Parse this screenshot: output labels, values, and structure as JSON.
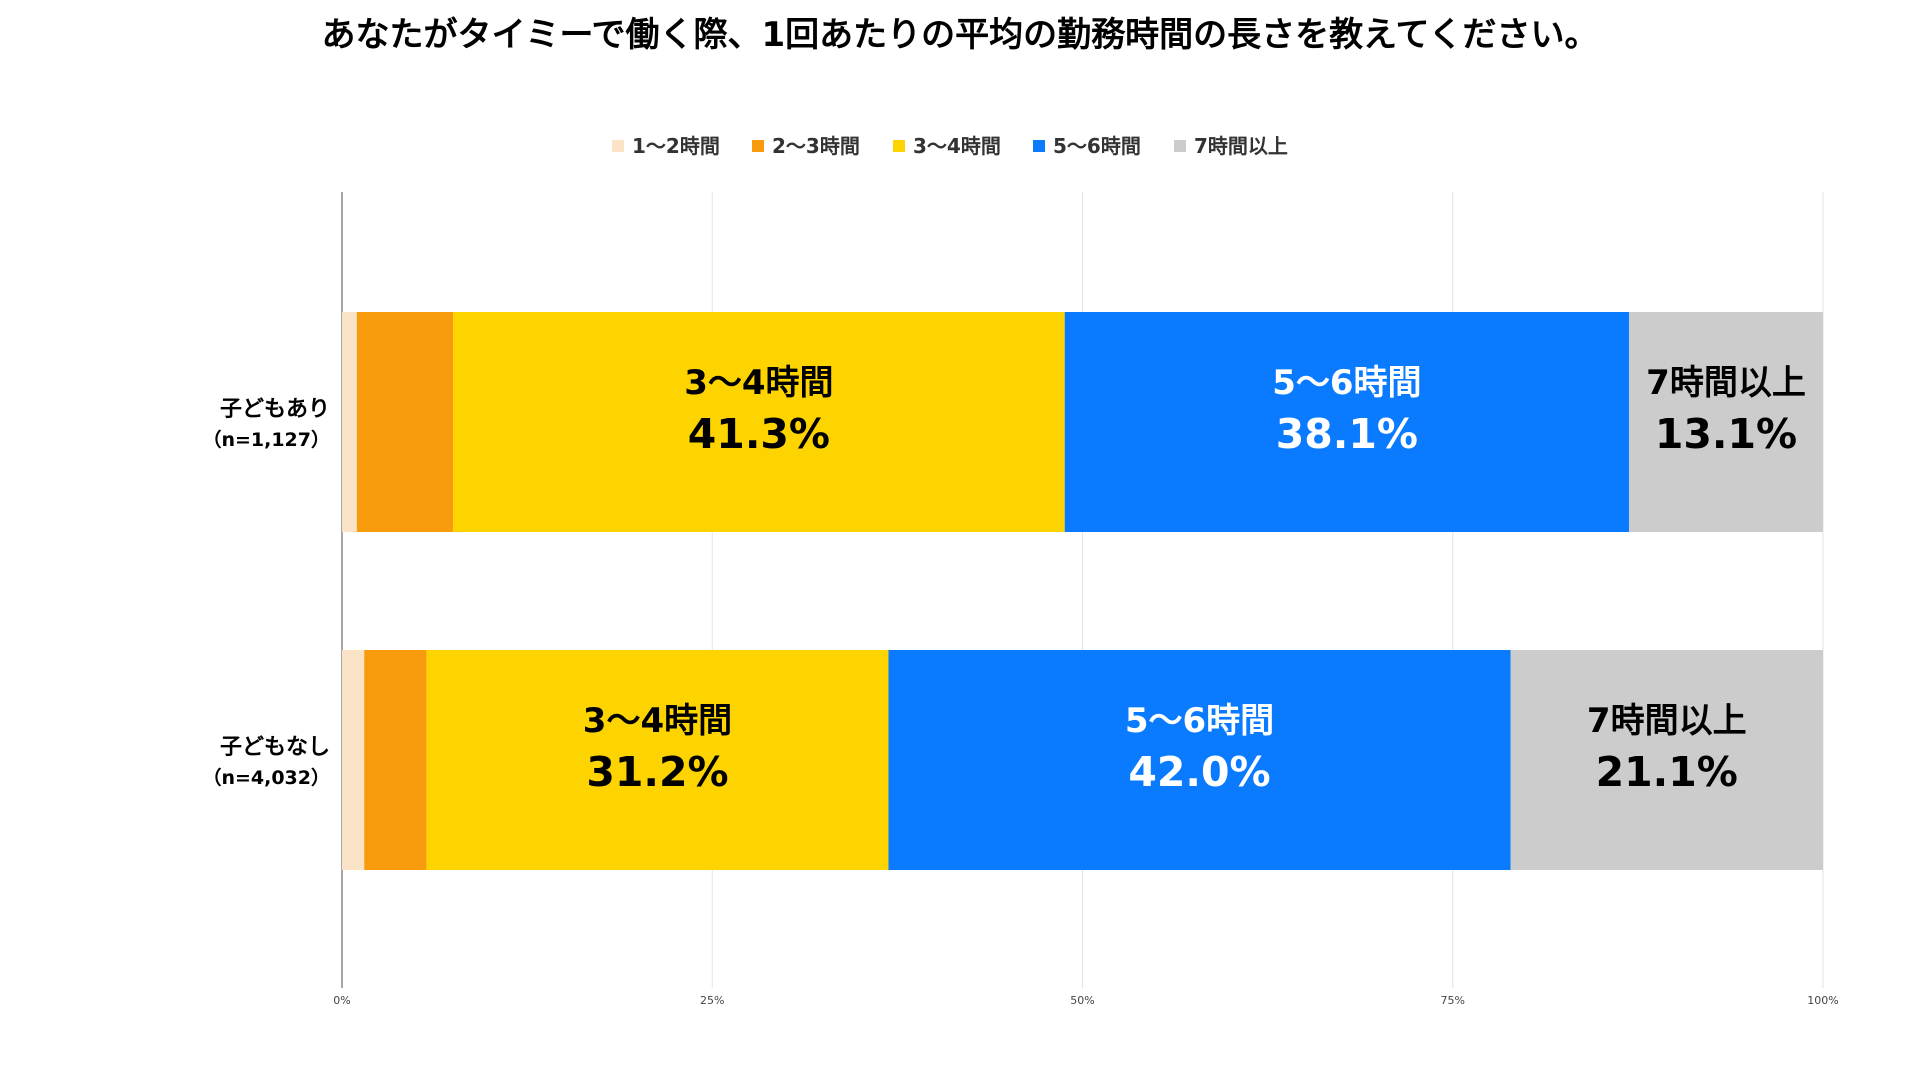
{
  "chart_data": {
    "type": "bar",
    "orientation": "horizontal",
    "stacked": true,
    "percent_stacked": true,
    "title": "あなたがタイミーで働く際、1回あたりの平均の勤務時間の長さを教えてください。",
    "categories": [
      {
        "name": "子どもあり",
        "n": "（n=1,127）"
      },
      {
        "name": "子どもなし",
        "n": "（n=4,032）"
      }
    ],
    "series": [
      {
        "name": "1〜2時間",
        "color": "#FBE3C8",
        "values": [
          1.0,
          1.5
        ]
      },
      {
        "name": "2〜3時間",
        "color": "#F89C0E",
        "values": [
          6.5,
          4.2
        ]
      },
      {
        "name": "3〜4時間",
        "color": "#FDD400",
        "values": [
          41.3,
          31.2
        ]
      },
      {
        "name": "5〜6時間",
        "color": "#0A7BFF",
        "values": [
          38.1,
          42.0
        ]
      },
      {
        "name": "7時間以上",
        "color": "#CCCCCC",
        "values": [
          13.1,
          21.1
        ]
      }
    ],
    "data_labels": [
      {
        "category": 0,
        "series": 2,
        "label": "3〜4時間",
        "value": "41.3%",
        "color": "#000000"
      },
      {
        "category": 0,
        "series": 3,
        "label": "5〜6時間",
        "value": "38.1%",
        "color": "#FFFFFF"
      },
      {
        "category": 0,
        "series": 4,
        "label": "7時間以上",
        "value": "13.1%",
        "color": "#000000"
      },
      {
        "category": 1,
        "series": 2,
        "label": "3〜4時間",
        "value": "31.2%",
        "color": "#000000"
      },
      {
        "category": 1,
        "series": 3,
        "label": "5〜6時間",
        "value": "42.0%",
        "color": "#FFFFFF"
      },
      {
        "category": 1,
        "series": 4,
        "label": "7時間以上",
        "value": "21.1%",
        "color": "#000000"
      }
    ],
    "x_ticks": [
      "0%",
      "25%",
      "50%",
      "75%",
      "100%"
    ],
    "xlim": [
      0,
      100
    ],
    "grid": true,
    "legend_position": "top-center"
  }
}
